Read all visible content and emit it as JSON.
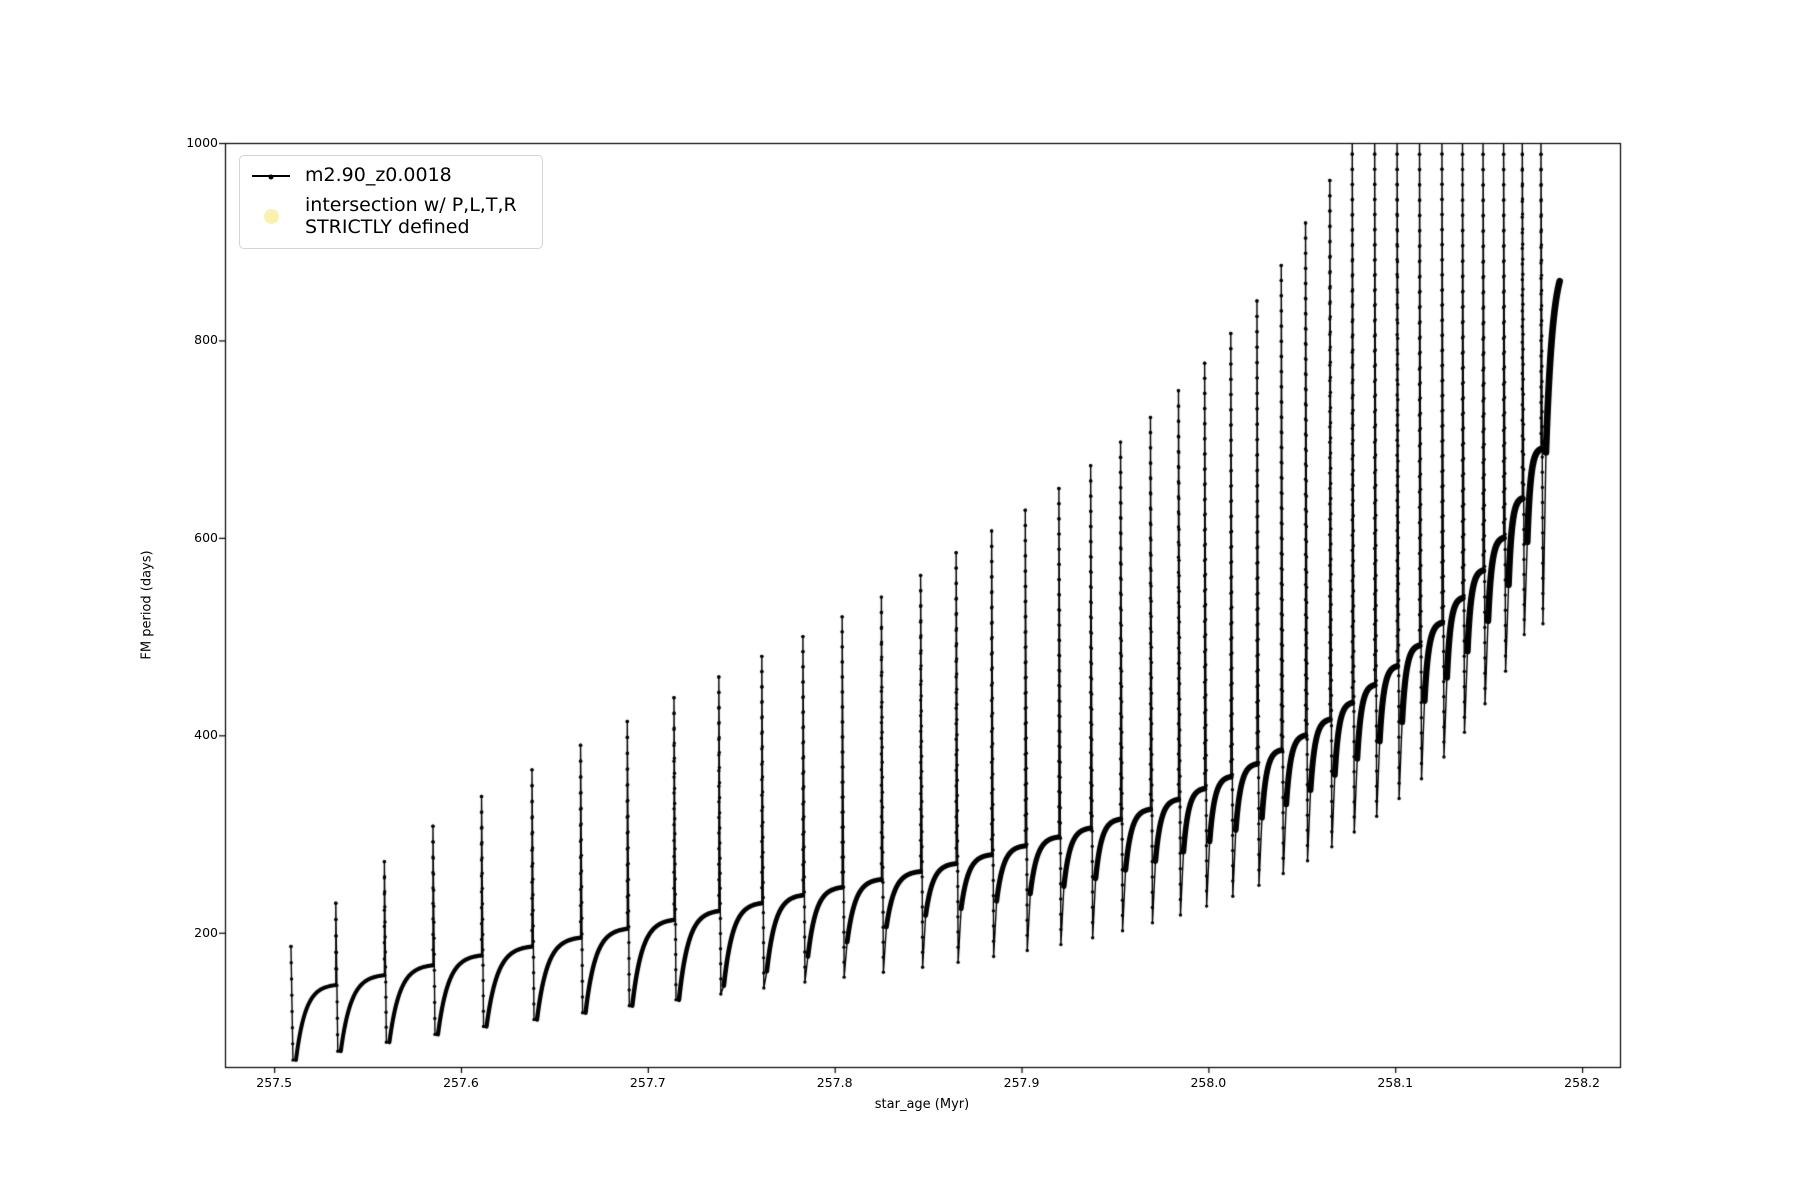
{
  "figure": {
    "background": "#ffffff",
    "line_color": "#000000",
    "intersection_marker_color": "#f7f2ad",
    "legend_border_color": "#d4d4d4"
  },
  "axes": {
    "xlabel": "star_age (Myr)",
    "ylabel": "FM period (days)",
    "xlim": [
      257.4737,
      258.2203
    ],
    "ylim": [
      64,
      1000
    ],
    "xticks": [
      257.5,
      257.6,
      257.7,
      257.8,
      257.9,
      258.0,
      258.1,
      258.2
    ],
    "xtick_labels": [
      "257.5",
      "257.6",
      "257.7",
      "257.8",
      "257.9",
      "258.0",
      "258.1",
      "258.2"
    ],
    "yticks": [
      200,
      400,
      600,
      800,
      1000
    ],
    "ytick_labels": [
      "200",
      "400",
      "600",
      "800",
      "1000"
    ],
    "grid": false
  },
  "legend": {
    "items": [
      {
        "label": "m2.90_z0.0018",
        "marker": "line-with-dot",
        "color": "#000000"
      },
      {
        "label": "intersection w/ P,L,T,R\nSTRICTLY defined",
        "marker": "filled-circle",
        "color": "#f7f2ad"
      }
    ]
  },
  "chart_data": {
    "type": "line",
    "title": "",
    "xlabel": "star_age (Myr)",
    "ylabel": "FM period (days)",
    "series_name": "m2.90_z0.0018",
    "legend_position": "upper left",
    "grid": false,
    "xlim": [
      257.4737,
      258.2203
    ],
    "ylim": [
      64,
      1000
    ],
    "clip_top": 1000,
    "description": "Sawtooth pulsation-period evolution: each cycle is a slow saturating rise (dense points, thick curve) terminated by a narrow vertical spike up to a peak, then a sharp drop to a deep dip before the next rise. Spikes past age 258.077 Myr are clipped at the 1000-day axis top.",
    "cycles": [
      {
        "age": 257.509,
        "peak": 186,
        "clipped": false,
        "dip": 71,
        "arc_end": 147
      },
      {
        "age": 257.533,
        "peak": 230,
        "clipped": false,
        "dip": 80,
        "arc_end": 157
      },
      {
        "age": 257.559,
        "peak": 272,
        "clipped": false,
        "dip": 89,
        "arc_end": 167
      },
      {
        "age": 257.585,
        "peak": 308,
        "clipped": false,
        "dip": 97,
        "arc_end": 177
      },
      {
        "age": 257.611,
        "peak": 338,
        "clipped": false,
        "dip": 105,
        "arc_end": 186
      },
      {
        "age": 257.638,
        "peak": 365,
        "clipped": false,
        "dip": 112,
        "arc_end": 195
      },
      {
        "age": 257.664,
        "peak": 390,
        "clipped": false,
        "dip": 119,
        "arc_end": 204
      },
      {
        "age": 257.689,
        "peak": 414,
        "clipped": false,
        "dip": 126,
        "arc_end": 213
      },
      {
        "age": 257.714,
        "peak": 438,
        "clipped": false,
        "dip": 132,
        "arc_end": 222
      },
      {
        "age": 257.738,
        "peak": 459,
        "clipped": false,
        "dip": 138,
        "arc_end": 230
      },
      {
        "age": 257.761,
        "peak": 480,
        "clipped": false,
        "dip": 144,
        "arc_end": 238
      },
      {
        "age": 257.783,
        "peak": 500,
        "clipped": false,
        "dip": 150,
        "arc_end": 246
      },
      {
        "age": 257.804,
        "peak": 520,
        "clipped": false,
        "dip": 155,
        "arc_end": 254
      },
      {
        "age": 257.825,
        "peak": 540,
        "clipped": false,
        "dip": 160,
        "arc_end": 262
      },
      {
        "age": 257.846,
        "peak": 562,
        "clipped": false,
        "dip": 165,
        "arc_end": 270
      },
      {
        "age": 257.865,
        "peak": 585,
        "clipped": false,
        "dip": 170,
        "arc_end": 279
      },
      {
        "age": 257.884,
        "peak": 607,
        "clipped": false,
        "dip": 176,
        "arc_end": 288
      },
      {
        "age": 257.902,
        "peak": 628,
        "clipped": false,
        "dip": 182,
        "arc_end": 297
      },
      {
        "age": 257.92,
        "peak": 650,
        "clipped": false,
        "dip": 188,
        "arc_end": 306
      },
      {
        "age": 257.937,
        "peak": 673,
        "clipped": false,
        "dip": 195,
        "arc_end": 315
      },
      {
        "age": 257.953,
        "peak": 697,
        "clipped": false,
        "dip": 202,
        "arc_end": 325
      },
      {
        "age": 257.969,
        "peak": 722,
        "clipped": false,
        "dip": 210,
        "arc_end": 335
      },
      {
        "age": 257.984,
        "peak": 749,
        "clipped": false,
        "dip": 218,
        "arc_end": 346
      },
      {
        "age": 257.998,
        "peak": 777,
        "clipped": false,
        "dip": 227,
        "arc_end": 358
      },
      {
        "age": 258.012,
        "peak": 807,
        "clipped": false,
        "dip": 237,
        "arc_end": 371
      },
      {
        "age": 258.026,
        "peak": 840,
        "clipped": false,
        "dip": 248,
        "arc_end": 385
      },
      {
        "age": 258.039,
        "peak": 876,
        "clipped": false,
        "dip": 260,
        "arc_end": 400
      },
      {
        "age": 258.052,
        "peak": 919,
        "clipped": false,
        "dip": 273,
        "arc_end": 416
      },
      {
        "age": 258.065,
        "peak": 962,
        "clipped": false,
        "dip": 287,
        "arc_end": 433
      },
      {
        "age": 258.077,
        "peak": 1000,
        "clipped": true,
        "dip": 302,
        "arc_end": 451
      },
      {
        "age": 258.089,
        "peak": 1000,
        "clipped": true,
        "dip": 318,
        "arc_end": 470
      },
      {
        "age": 258.101,
        "peak": 1000,
        "clipped": true,
        "dip": 336,
        "arc_end": 491
      },
      {
        "age": 258.113,
        "peak": 1000,
        "clipped": true,
        "dip": 356,
        "arc_end": 514
      },
      {
        "age": 258.125,
        "peak": 1000,
        "clipped": true,
        "dip": 378,
        "arc_end": 539
      },
      {
        "age": 258.136,
        "peak": 1000,
        "clipped": true,
        "dip": 403,
        "arc_end": 567
      },
      {
        "age": 258.147,
        "peak": 1000,
        "clipped": true,
        "dip": 432,
        "arc_end": 600
      },
      {
        "age": 258.158,
        "peak": 1000,
        "clipped": true,
        "dip": 465,
        "arc_end": 640
      },
      {
        "age": 258.168,
        "peak": 1000,
        "clipped": true,
        "dip": 502,
        "arc_end": 690
      },
      {
        "age": 258.178,
        "peak": 1000,
        "clipped": true,
        "dip": 513,
        "arc_end": 860
      }
    ],
    "end_point": {
      "age": 258.188,
      "period": 860
    }
  }
}
